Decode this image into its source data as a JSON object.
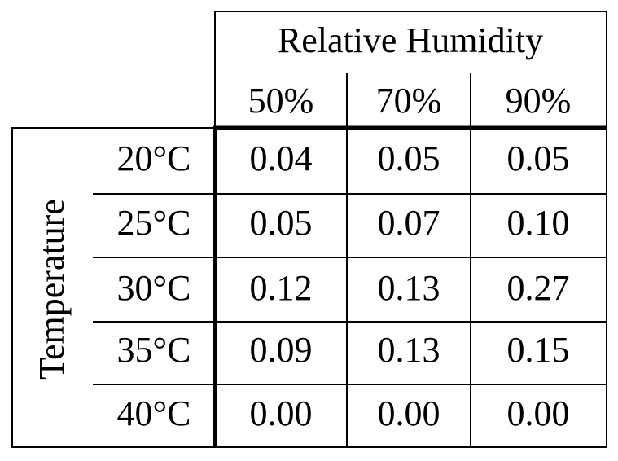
{
  "table": {
    "column_group": "Relative Humidity",
    "columns": [
      "50%",
      "70%",
      "90%"
    ],
    "row_group": "Temperature",
    "rows": [
      {
        "label": "20°C",
        "cells": [
          "0.04",
          "0.05",
          "0.05"
        ]
      },
      {
        "label": "25°C",
        "cells": [
          "0.05",
          "0.07",
          "0.10"
        ]
      },
      {
        "label": "30°C",
        "cells": [
          "0.12",
          "0.13",
          "0.27"
        ]
      },
      {
        "label": "35°C",
        "cells": [
          "0.09",
          "0.13",
          "0.15"
        ]
      },
      {
        "label": "40°C",
        "cells": [
          "0.00",
          "0.00",
          "0.00"
        ]
      }
    ]
  }
}
